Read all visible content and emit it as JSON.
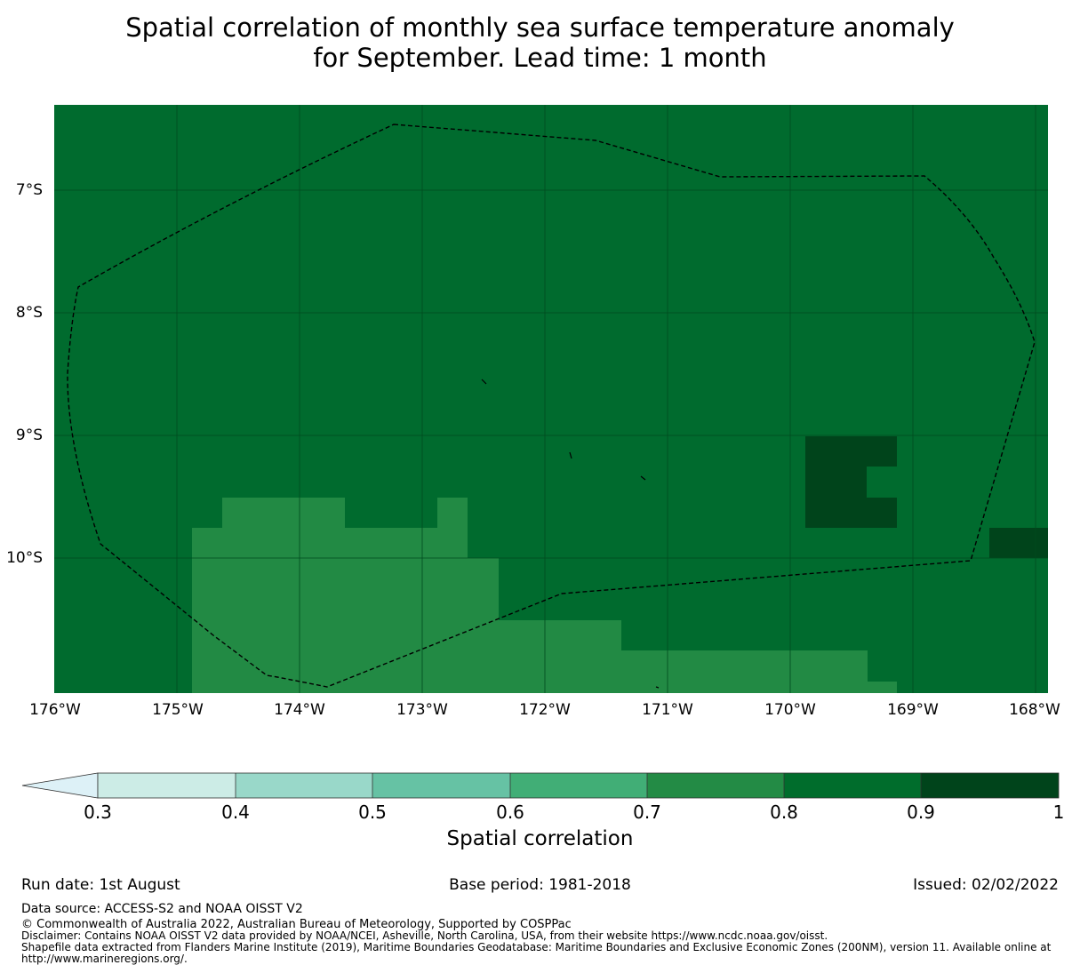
{
  "title": {
    "line1": "Spatial correlation of monthly sea surface temperature anomaly",
    "line2": "for September. Lead time: 1 month"
  },
  "map": {
    "y_labels": [
      "7°S",
      "8°S",
      "9°S",
      "10°S"
    ],
    "x_labels": [
      "176°W",
      "175°W",
      "174°W",
      "173°W",
      "172°W",
      "171°W",
      "170°W",
      "169°W",
      "168°W"
    ],
    "colors": {
      "background": "#006b2e",
      "light_region": "#228a44",
      "dark_region": "#00441b",
      "grid": "#004a1f",
      "boundary": "#000000"
    }
  },
  "colorbar": {
    "ticks": [
      "0.3",
      "0.4",
      "0.5",
      "0.6",
      "0.7",
      "0.8",
      "0.9",
      "1"
    ],
    "colors": [
      "#ddf1f7",
      "#ccece6",
      "#99d8c9",
      "#66c2a4",
      "#41ae76",
      "#238b45",
      "#006d2c",
      "#00441b"
    ],
    "label": "Spatial correlation"
  },
  "footer": {
    "run_date": "Run date: 1st August",
    "base_period": "Base period: 1981-2018",
    "issued": "Issued: 02/02/2022",
    "data_source": "Data source: ACCESS-S2 and NOAA OISST V2",
    "copyright": "© Commonwealth of Australia 2022, Australian Bureau of Meteorology, Supported by COSPPac",
    "disclaimer": "Disclaimer: Contains NOAA OISST V2 data provided by NOAA/NCEI, Asheville, North Carolina, USA, from their website https://www.ncdc.noaa.gov/oisst.",
    "shapefile": "Shapefile data extracted from Flanders Marine Institute (2019), Maritime Boundaries Geodatabase: Maritime Boundaries and Exclusive Economic Zones (200NM), version 11. Available online at http://www.marineregions.org/."
  }
}
